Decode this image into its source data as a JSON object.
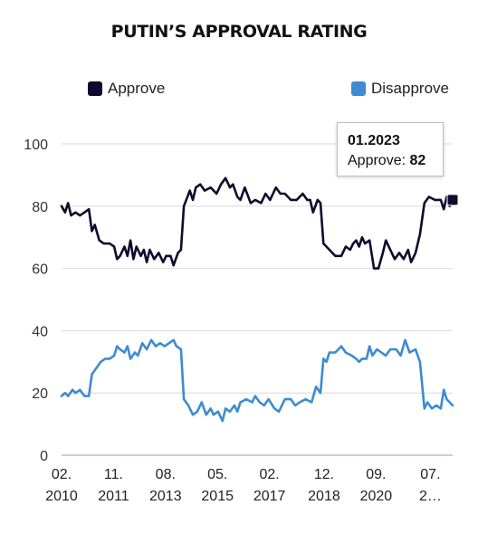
{
  "chart_data": {
    "type": "line",
    "title": "PUTIN’S APPROVAL RATING",
    "ylim": [
      0,
      100
    ],
    "y_ticks": [
      "0",
      "20",
      "40",
      "60",
      "80",
      "100"
    ],
    "x_ticks": [
      {
        "month": "02.",
        "year": "2010",
        "x": 2010.08
      },
      {
        "month": "11.",
        "year": "2011",
        "x": 2011.83
      },
      {
        "month": "08.",
        "year": "2013",
        "x": 2013.58
      },
      {
        "month": "05.",
        "year": "2015",
        "x": 2015.33
      },
      {
        "month": "02.",
        "year": "2017",
        "x": 2017.08
      },
      {
        "month": "12.",
        "year": "2018",
        "x": 2018.92
      },
      {
        "month": "09.",
        "year": "2020",
        "x": 2020.67
      },
      {
        "month": "07.",
        "year": "2…",
        "x": 2022.5
      }
    ],
    "xlim": [
      2010.08,
      2023.25
    ],
    "grid": true,
    "legend_position": "top",
    "series": [
      {
        "name": "Approve",
        "color": "#0d0c2e",
        "points": [
          [
            2010.08,
            80
          ],
          [
            2010.2,
            78
          ],
          [
            2010.3,
            81
          ],
          [
            2010.4,
            77
          ],
          [
            2010.55,
            78
          ],
          [
            2010.7,
            77
          ],
          [
            2010.85,
            78
          ],
          [
            2011.0,
            79
          ],
          [
            2011.1,
            72
          ],
          [
            2011.2,
            74
          ],
          [
            2011.35,
            69
          ],
          [
            2011.5,
            68
          ],
          [
            2011.7,
            68
          ],
          [
            2011.85,
            67
          ],
          [
            2011.95,
            63
          ],
          [
            2012.05,
            64
          ],
          [
            2012.2,
            67
          ],
          [
            2012.3,
            64
          ],
          [
            2012.4,
            69
          ],
          [
            2012.5,
            63
          ],
          [
            2012.6,
            67
          ],
          [
            2012.75,
            64
          ],
          [
            2012.85,
            66
          ],
          [
            2012.95,
            62
          ],
          [
            2013.05,
            66
          ],
          [
            2013.2,
            63
          ],
          [
            2013.35,
            65
          ],
          [
            2013.5,
            62
          ],
          [
            2013.6,
            64
          ],
          [
            2013.75,
            64
          ],
          [
            2013.85,
            61
          ],
          [
            2014.0,
            65
          ],
          [
            2014.1,
            66
          ],
          [
            2014.2,
            80
          ],
          [
            2014.4,
            85
          ],
          [
            2014.5,
            82
          ],
          [
            2014.6,
            86
          ],
          [
            2014.75,
            87
          ],
          [
            2014.9,
            85
          ],
          [
            2015.1,
            86
          ],
          [
            2015.3,
            84
          ],
          [
            2015.45,
            87
          ],
          [
            2015.6,
            89
          ],
          [
            2015.75,
            86
          ],
          [
            2015.85,
            87
          ],
          [
            2016.0,
            83
          ],
          [
            2016.1,
            82
          ],
          [
            2016.25,
            86
          ],
          [
            2016.45,
            81
          ],
          [
            2016.6,
            82
          ],
          [
            2016.8,
            81
          ],
          [
            2016.95,
            84
          ],
          [
            2017.1,
            82
          ],
          [
            2017.3,
            86
          ],
          [
            2017.45,
            84
          ],
          [
            2017.6,
            84
          ],
          [
            2017.8,
            82
          ],
          [
            2018.0,
            82
          ],
          [
            2018.2,
            84
          ],
          [
            2018.35,
            82
          ],
          [
            2018.45,
            82
          ],
          [
            2018.55,
            78
          ],
          [
            2018.7,
            82
          ],
          [
            2018.8,
            81
          ],
          [
            2018.9,
            68
          ],
          [
            2019.0,
            67
          ],
          [
            2019.1,
            66
          ],
          [
            2019.3,
            64
          ],
          [
            2019.5,
            64
          ],
          [
            2019.65,
            67
          ],
          [
            2019.8,
            66
          ],
          [
            2019.9,
            68
          ],
          [
            2020.0,
            69
          ],
          [
            2020.1,
            67
          ],
          [
            2020.2,
            70
          ],
          [
            2020.3,
            68
          ],
          [
            2020.45,
            69
          ],
          [
            2020.6,
            60
          ],
          [
            2020.75,
            60
          ],
          [
            2020.9,
            65
          ],
          [
            2021.0,
            69
          ],
          [
            2021.1,
            67
          ],
          [
            2021.3,
            63
          ],
          [
            2021.45,
            65
          ],
          [
            2021.6,
            63
          ],
          [
            2021.75,
            66
          ],
          [
            2021.85,
            62
          ],
          [
            2022.0,
            65
          ],
          [
            2022.15,
            71
          ],
          [
            2022.3,
            81
          ],
          [
            2022.45,
            83
          ],
          [
            2022.65,
            82
          ],
          [
            2022.85,
            82
          ],
          [
            2022.95,
            79
          ],
          [
            2023.05,
            83
          ],
          [
            2023.15,
            80
          ],
          [
            2023.25,
            82
          ]
        ]
      },
      {
        "name": "Disapprove",
        "color": "#3d8bd0",
        "points": [
          [
            2010.08,
            19
          ],
          [
            2010.2,
            20
          ],
          [
            2010.3,
            19
          ],
          [
            2010.45,
            21
          ],
          [
            2010.55,
            20
          ],
          [
            2010.7,
            21
          ],
          [
            2010.85,
            19
          ],
          [
            2011.0,
            19
          ],
          [
            2011.1,
            26
          ],
          [
            2011.25,
            28
          ],
          [
            2011.4,
            30
          ],
          [
            2011.55,
            31
          ],
          [
            2011.7,
            31
          ],
          [
            2011.85,
            32
          ],
          [
            2011.95,
            35
          ],
          [
            2012.05,
            34
          ],
          [
            2012.2,
            33
          ],
          [
            2012.3,
            35
          ],
          [
            2012.4,
            31
          ],
          [
            2012.55,
            33
          ],
          [
            2012.65,
            32
          ],
          [
            2012.8,
            36
          ],
          [
            2012.95,
            34
          ],
          [
            2013.1,
            37
          ],
          [
            2013.25,
            35
          ],
          [
            2013.4,
            36
          ],
          [
            2013.55,
            35
          ],
          [
            2013.7,
            36
          ],
          [
            2013.85,
            37
          ],
          [
            2013.95,
            35
          ],
          [
            2014.1,
            34
          ],
          [
            2014.2,
            18
          ],
          [
            2014.35,
            16
          ],
          [
            2014.5,
            13
          ],
          [
            2014.65,
            14
          ],
          [
            2014.8,
            17
          ],
          [
            2014.95,
            13
          ],
          [
            2015.1,
            15
          ],
          [
            2015.2,
            13
          ],
          [
            2015.35,
            14
          ],
          [
            2015.5,
            11
          ],
          [
            2015.6,
            15
          ],
          [
            2015.75,
            14
          ],
          [
            2015.9,
            16
          ],
          [
            2016.0,
            14
          ],
          [
            2016.1,
            17
          ],
          [
            2016.3,
            18
          ],
          [
            2016.5,
            17
          ],
          [
            2016.6,
            19
          ],
          [
            2016.75,
            17
          ],
          [
            2016.9,
            16
          ],
          [
            2017.05,
            18
          ],
          [
            2017.25,
            15
          ],
          [
            2017.4,
            14
          ],
          [
            2017.6,
            18
          ],
          [
            2017.8,
            18
          ],
          [
            2017.95,
            16
          ],
          [
            2018.1,
            17
          ],
          [
            2018.3,
            18
          ],
          [
            2018.5,
            17
          ],
          [
            2018.65,
            22
          ],
          [
            2018.8,
            20
          ],
          [
            2018.9,
            31
          ],
          [
            2019.0,
            30
          ],
          [
            2019.1,
            33
          ],
          [
            2019.3,
            33
          ],
          [
            2019.5,
            35
          ],
          [
            2019.65,
            33
          ],
          [
            2019.85,
            32
          ],
          [
            2020.0,
            31
          ],
          [
            2020.1,
            30
          ],
          [
            2020.2,
            31
          ],
          [
            2020.35,
            31
          ],
          [
            2020.45,
            35
          ],
          [
            2020.55,
            32
          ],
          [
            2020.7,
            34
          ],
          [
            2020.85,
            33
          ],
          [
            2021.0,
            32
          ],
          [
            2021.15,
            34
          ],
          [
            2021.35,
            34
          ],
          [
            2021.5,
            32
          ],
          [
            2021.65,
            37
          ],
          [
            2021.8,
            33
          ],
          [
            2022.0,
            34
          ],
          [
            2022.15,
            30
          ],
          [
            2022.3,
            15
          ],
          [
            2022.4,
            17
          ],
          [
            2022.55,
            15
          ],
          [
            2022.7,
            16
          ],
          [
            2022.85,
            15
          ],
          [
            2022.95,
            21
          ],
          [
            2023.05,
            18
          ],
          [
            2023.15,
            17
          ],
          [
            2023.25,
            16
          ]
        ]
      }
    ]
  },
  "tooltip": {
    "date": "01.2023",
    "series_label": "Approve:",
    "value": "82"
  },
  "highlight": {
    "x": 2023.25,
    "y": 82
  }
}
